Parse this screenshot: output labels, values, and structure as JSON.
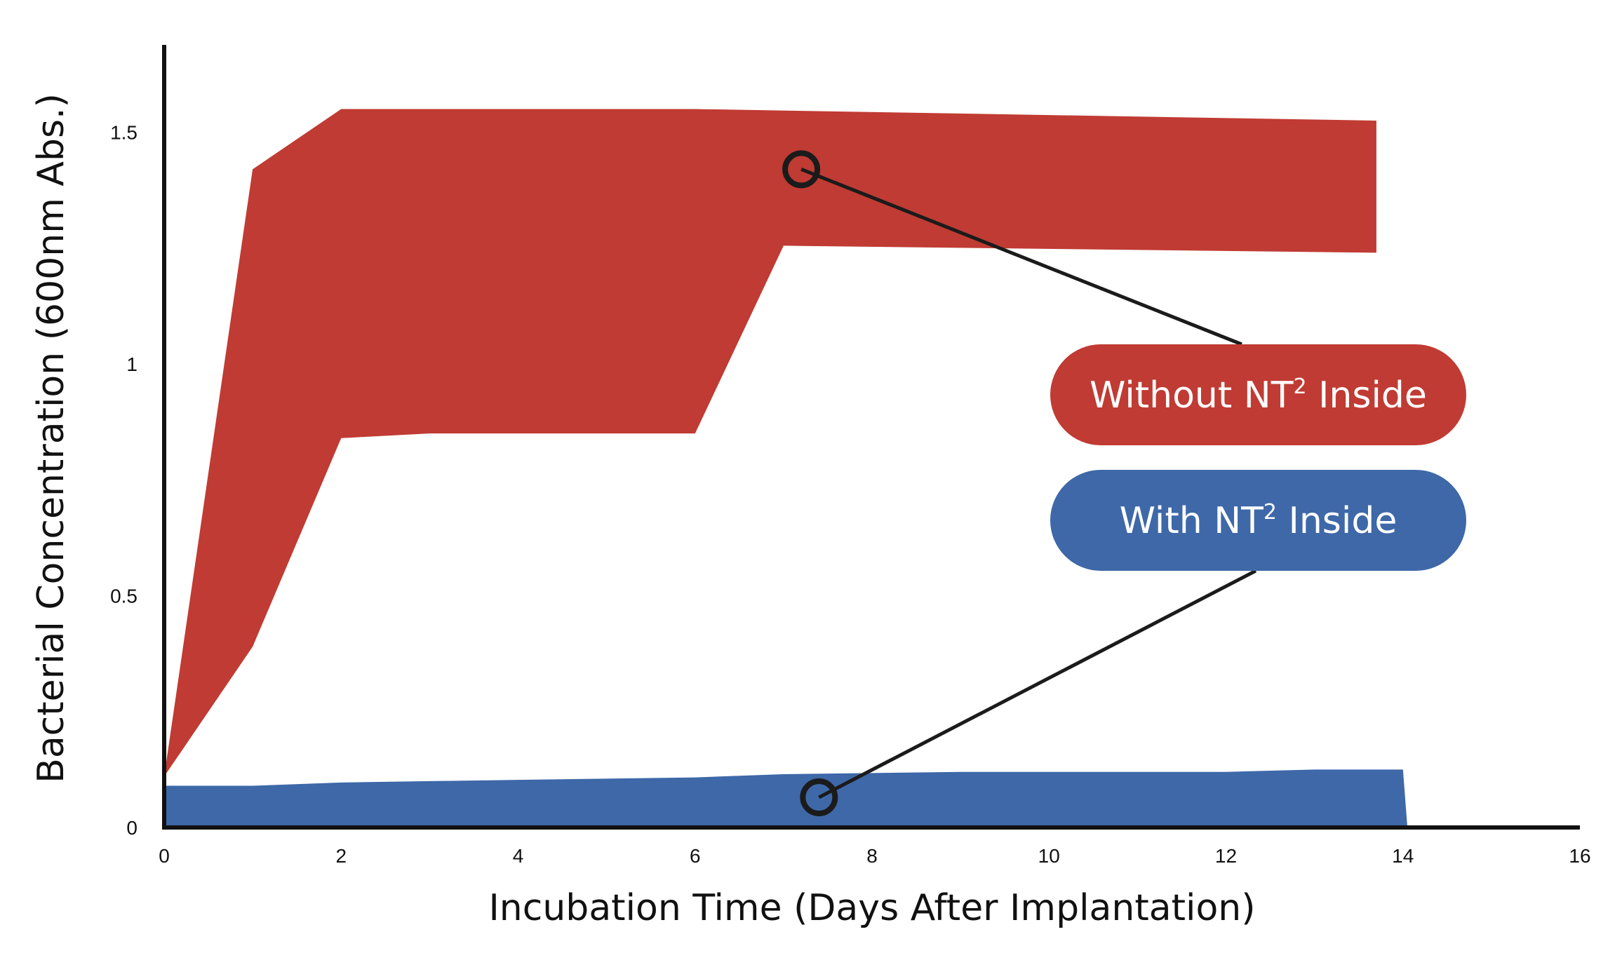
{
  "chart_data": {
    "type": "area",
    "xlabel": "Incubation Time (Days After Implantation)",
    "ylabel": "Bacterial Concentration (600nm Abs.)",
    "xlim": [
      0,
      16
    ],
    "ylim": [
      0,
      1.7
    ],
    "xticks": [
      "0",
      "2",
      "4",
      "6",
      "8",
      "10",
      "12",
      "14",
      "16"
    ],
    "yticks": [
      "0",
      "0.5",
      "1",
      "1.5"
    ],
    "grid": false,
    "series": [
      {
        "name": "Without NT2 Inside",
        "label_main": "Without NT",
        "label_sup": "2",
        "label_tail": " Inside",
        "color": "#c03b33",
        "upper": [
          [
            0,
            0.11
          ],
          [
            1,
            1.42
          ],
          [
            2,
            1.55
          ],
          [
            6,
            1.55
          ],
          [
            13.7,
            1.525
          ],
          [
            13.7,
            1.52
          ]
        ],
        "lower": [
          [
            0,
            0.11
          ],
          [
            1,
            0.39
          ],
          [
            2,
            0.84
          ],
          [
            3,
            0.85
          ],
          [
            6,
            0.85
          ],
          [
            7,
            1.255
          ],
          [
            13.7,
            1.24
          ]
        ],
        "marker": [
          7.2,
          1.42
        ]
      },
      {
        "name": "With NT2 Inside",
        "label_main": "With NT",
        "label_sup": "2",
        "label_tail": " Inside",
        "color": "#3e68a8",
        "upper": [
          [
            0,
            0.09
          ],
          [
            1,
            0.09
          ],
          [
            2,
            0.097
          ],
          [
            3,
            0.1
          ],
          [
            6,
            0.108
          ],
          [
            7,
            0.115
          ],
          [
            9,
            0.12
          ],
          [
            12,
            0.12
          ],
          [
            13,
            0.125
          ],
          [
            14,
            0.125
          ]
        ],
        "lower": [
          [
            0,
            0
          ],
          [
            14.05,
            0
          ]
        ],
        "marker": [
          7.4,
          0.065
        ]
      }
    ]
  }
}
